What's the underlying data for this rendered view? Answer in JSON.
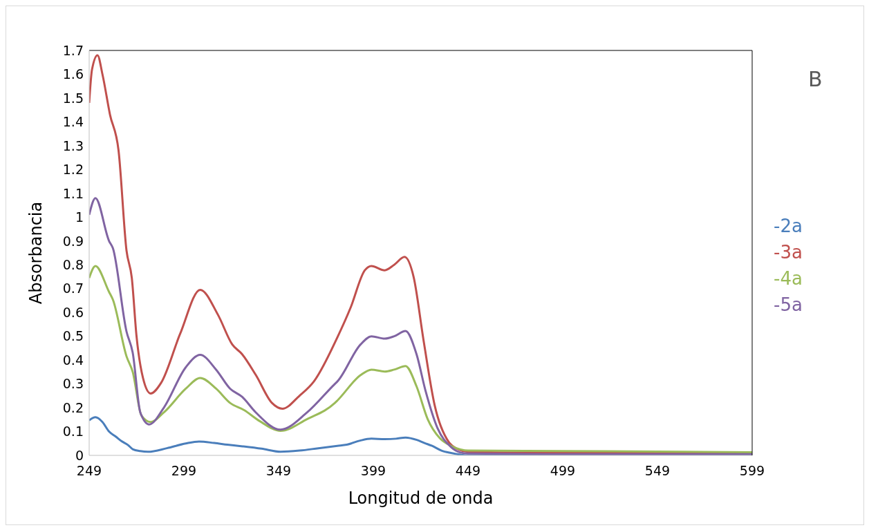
{
  "chart_data": {
    "type": "line",
    "xlabel": "Longitud de onda",
    "ylabel": "Absorbancia",
    "annotations": [
      "B"
    ],
    "xlim": [
      249,
      599
    ],
    "xticks": [
      249,
      299,
      349,
      399,
      449,
      499,
      549,
      599
    ],
    "ylim": [
      0,
      1.7
    ],
    "yticks": [
      0,
      0.1,
      0.2,
      0.3,
      0.4,
      0.5,
      0.6,
      0.7,
      0.8,
      0.9,
      1,
      1.1,
      1.2,
      1.3,
      1.4,
      1.5,
      1.6,
      1.7
    ],
    "grid": false,
    "legend": "right",
    "marker": "none",
    "line_style": "solid",
    "series": [
      {
        "name": "-2a",
        "color": "#4a7ebb",
        "x": [
          249,
          252.3,
          256,
          259.5,
          263,
          266,
          269.4,
          272,
          276,
          280,
          290,
          300,
          307,
          315,
          322,
          330,
          340,
          350,
          360,
          370,
          380,
          385,
          392,
          398,
          405,
          411,
          416,
          422,
          426,
          430,
          435,
          440,
          445,
          449,
          499,
          549,
          599
        ],
        "values": [
          0.147,
          0.16,
          0.14,
          0.1,
          0.079,
          0.06,
          0.044,
          0.026,
          0.018,
          0.015,
          0.03,
          0.05,
          0.058,
          0.052,
          0.045,
          0.038,
          0.028,
          0.015,
          0.02,
          0.03,
          0.04,
          0.045,
          0.062,
          0.07,
          0.068,
          0.07,
          0.075,
          0.065,
          0.052,
          0.04,
          0.02,
          0.01,
          0.003,
          0,
          0,
          0,
          0
        ]
      },
      {
        "name": "-3a",
        "color": "#c0504d",
        "x": [
          249,
          250.5,
          253.4,
          256,
          260,
          264.5,
          268.7,
          271.5,
          274,
          277.4,
          281.4,
          287,
          297,
          307.6,
          317,
          324.5,
          329.7,
          337,
          345.5,
          351,
          360,
          367.6,
          380,
          387,
          394.5,
          398,
          405,
          410,
          415.5,
          420.3,
          425.5,
          431.4,
          438.8,
          444,
          449,
          499,
          549,
          599
        ],
        "values": [
          1.48,
          1.62,
          1.68,
          1.6,
          1.43,
          1.28,
          0.86,
          0.745,
          0.5,
          0.325,
          0.26,
          0.305,
          0.51,
          0.695,
          0.59,
          0.466,
          0.425,
          0.337,
          0.22,
          0.196,
          0.25,
          0.31,
          0.495,
          0.62,
          0.777,
          0.795,
          0.777,
          0.8,
          0.833,
          0.748,
          0.484,
          0.21,
          0.056,
          0.025,
          0.015,
          0.01,
          0.01,
          0.01
        ]
      },
      {
        "name": "-4a",
        "color": "#9bbb59",
        "x": [
          249,
          252.3,
          259.5,
          261.5,
          268.7,
          272,
          276.6,
          281.4,
          288.4,
          300,
          307.6,
          316,
          323.4,
          330.8,
          339,
          350,
          364,
          378.7,
          380,
          392.3,
          398,
          405,
          410,
          416,
          421.8,
          427.7,
          434,
          440,
          445,
          449,
          499,
          549,
          599
        ],
        "values": [
          0.745,
          0.795,
          0.686,
          0.654,
          0.416,
          0.35,
          0.167,
          0.14,
          0.18,
          0.28,
          0.325,
          0.28,
          0.22,
          0.19,
          0.144,
          0.103,
          0.152,
          0.22,
          0.23,
          0.337,
          0.36,
          0.352,
          0.36,
          0.375,
          0.29,
          0.152,
          0.073,
          0.04,
          0.025,
          0.02,
          0.018,
          0.016,
          0.013
        ]
      },
      {
        "name": "-5a",
        "color": "#8064a2",
        "x": [
          249,
          252.3,
          259.5,
          261.5,
          268.7,
          272,
          276,
          280.7,
          288.4,
          300,
          307.6,
          316,
          323.4,
          329.7,
          337,
          350,
          364,
          378.7,
          380,
          392.3,
          398,
          405,
          410,
          416,
          421.8,
          426.6,
          432.9,
          440,
          445,
          449,
          499,
          549,
          599
        ],
        "values": [
          1.01,
          1.08,
          0.9,
          0.87,
          0.52,
          0.43,
          0.18,
          0.13,
          0.2,
          0.37,
          0.422,
          0.36,
          0.28,
          0.246,
          0.18,
          0.108,
          0.18,
          0.3,
          0.31,
          0.466,
          0.5,
          0.49,
          0.5,
          0.522,
          0.425,
          0.27,
          0.114,
          0.035,
          0.012,
          0.008,
          0.005,
          0.005,
          0.005
        ]
      }
    ]
  }
}
